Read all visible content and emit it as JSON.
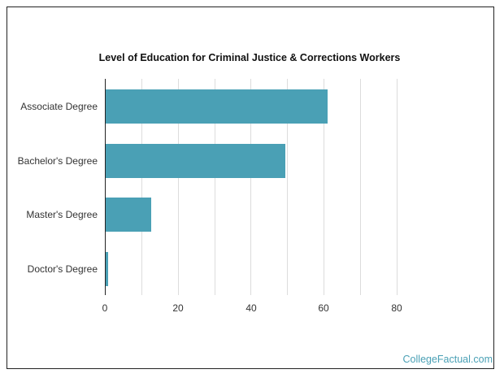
{
  "chart_data": {
    "type": "bar",
    "orientation": "horizontal",
    "title": "Level of Education for Criminal Justice & Corrections Workers",
    "categories": [
      "Associate Degree",
      "Bachelor's Degree",
      "Master's Degree",
      "Doctor's Degree"
    ],
    "values": [
      61.1,
      49.5,
      12.6,
      1.0
    ],
    "xlabel": "",
    "ylabel": "",
    "xlim": [
      0,
      80
    ],
    "xticks": [
      "0",
      "20",
      "40",
      "60",
      "80"
    ],
    "grid": true,
    "bar_color": "#4aa0b5",
    "legend": null
  },
  "credit": "CollegeFactual.com"
}
